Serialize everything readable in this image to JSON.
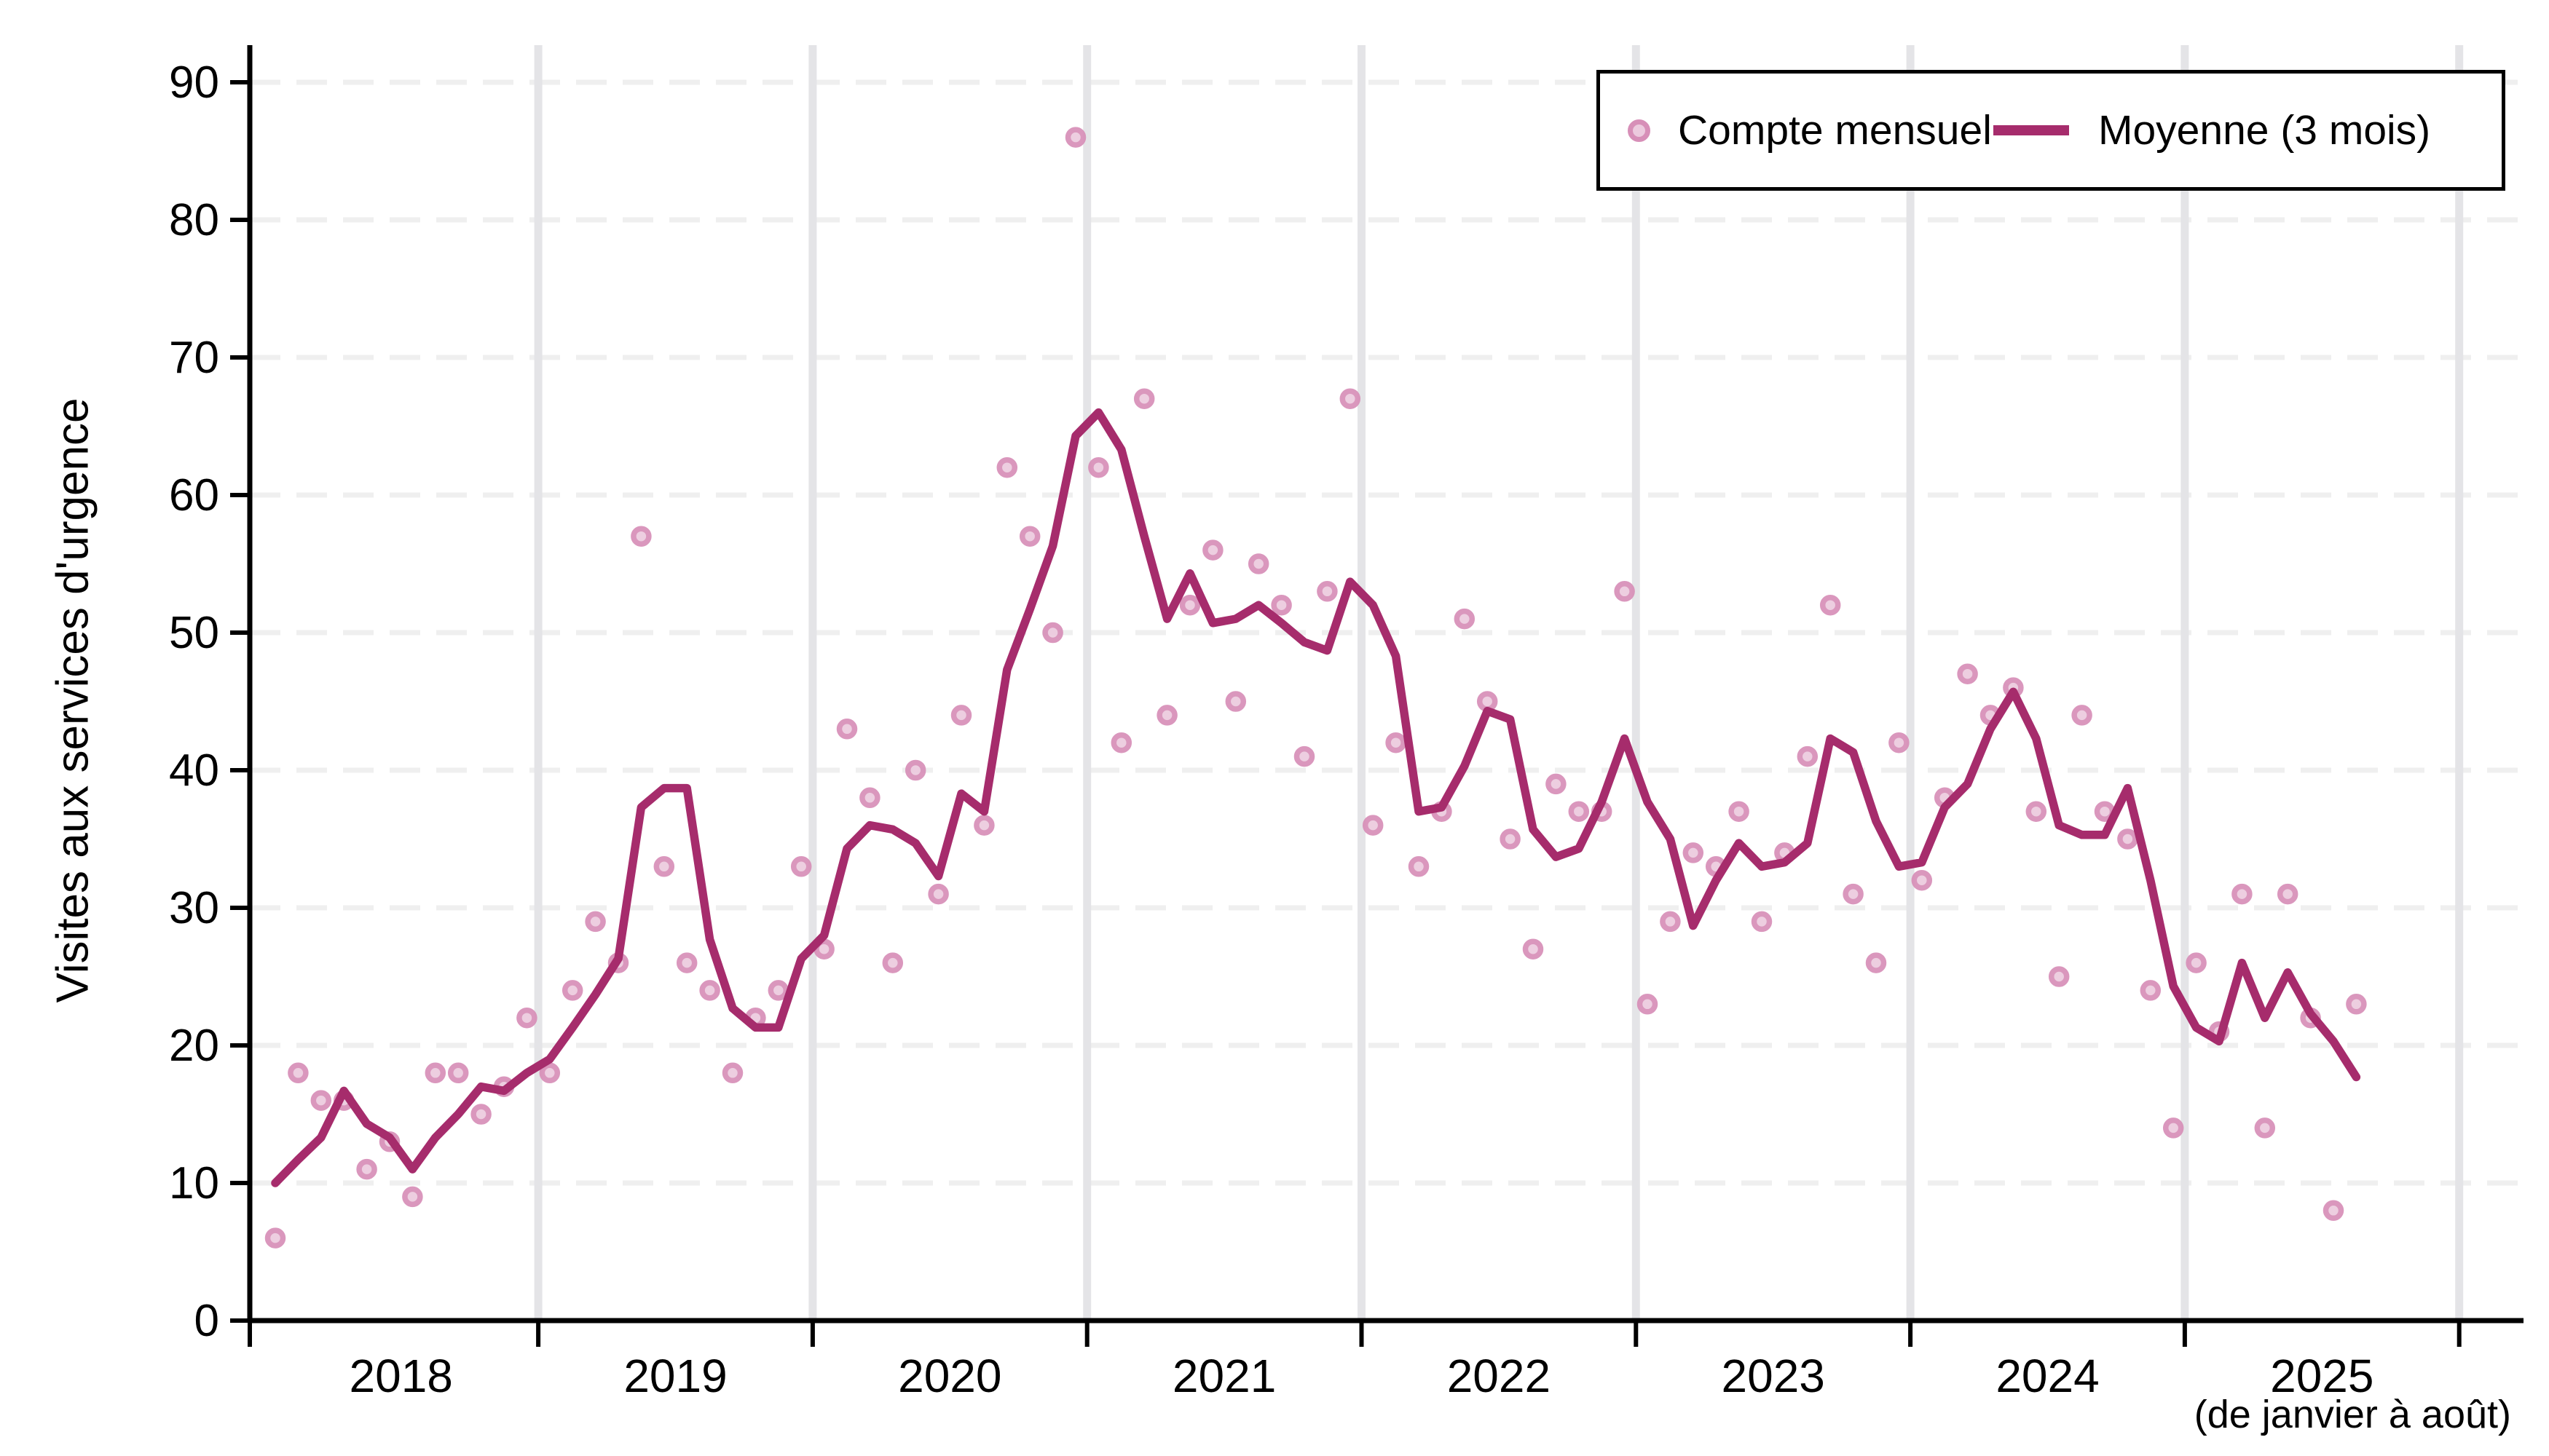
{
  "axes": {
    "y_title": "Visites aux services d'urgence",
    "y_ticks": [
      0,
      10,
      20,
      30,
      40,
      50,
      60,
      70,
      80,
      90
    ],
    "ylim": [
      0,
      90
    ],
    "x_year_labels": [
      "2018",
      "2019",
      "2020",
      "2021",
      "2022",
      "2023",
      "2024",
      "2025"
    ],
    "x_note": "(de janvier à août)",
    "grid": "horizontal dashed, vertical solid at year boundaries"
  },
  "legend": {
    "monthly_label": "Compte mensuel",
    "ma_label": "Moyenne (3 mois)"
  },
  "colors": {
    "ma_line": "#A62C6C",
    "point_ring": "#D78FB8",
    "point_fill": "#ECCADE",
    "h_gridline": "#EFEFEF",
    "v_gridline": "#E4E4E7",
    "axis": "#000000",
    "background": "#FFFFFF"
  },
  "chart_data": {
    "type": "scatter",
    "x_unit": "month",
    "start_month": "2018-01",
    "end_month": "2025-08",
    "n_months": 92,
    "title": "",
    "xlabel": "",
    "ylabel": "Visites aux services d'urgence",
    "ylim": [
      0,
      90
    ],
    "legend_position": "top-right",
    "series": [
      {
        "name": "Compte mensuel",
        "type": "scatter",
        "values": [
          6,
          18,
          16,
          16,
          11,
          13,
          9,
          18,
          18,
          15,
          17,
          22,
          18,
          24,
          29,
          26,
          57,
          33,
          26,
          24,
          18,
          22,
          24,
          33,
          27,
          43,
          38,
          26,
          40,
          31,
          44,
          36,
          62,
          57,
          50,
          86,
          62,
          42,
          67,
          44,
          52,
          56,
          45,
          55,
          52,
          41,
          53,
          67,
          36,
          42,
          33,
          37,
          51,
          45,
          35,
          27,
          39,
          37,
          37,
          53,
          23,
          29,
          34,
          33,
          37,
          29,
          34,
          41,
          52,
          31,
          26,
          42,
          32,
          38,
          47,
          44,
          46,
          37,
          25,
          44,
          37,
          35,
          24,
          14,
          26,
          21,
          31,
          14,
          31,
          22,
          8,
          23
        ]
      },
      {
        "name": "Moyenne (3 mois)",
        "type": "line",
        "values": [
          10.0,
          11.7,
          13.3,
          16.7,
          14.3,
          13.3,
          11.0,
          13.3,
          15.0,
          17.0,
          16.7,
          18.0,
          19.0,
          21.3,
          23.7,
          26.3,
          37.3,
          38.7,
          38.7,
          27.7,
          22.7,
          21.3,
          21.3,
          26.3,
          28.0,
          34.3,
          36.0,
          35.7,
          34.7,
          32.3,
          38.3,
          37.0,
          47.3,
          51.7,
          56.3,
          64.3,
          66.0,
          63.3,
          57.0,
          51.0,
          54.3,
          50.7,
          51.0,
          52.0,
          50.7,
          49.3,
          48.7,
          53.7,
          52.0,
          48.3,
          37.0,
          37.3,
          40.3,
          44.3,
          43.7,
          35.7,
          33.7,
          34.3,
          37.7,
          42.3,
          37.7,
          35.0,
          28.7,
          32.0,
          34.7,
          33.0,
          33.3,
          34.7,
          42.3,
          41.3,
          36.3,
          33.0,
          33.3,
          37.3,
          39.0,
          43.0,
          45.7,
          42.3,
          36.0,
          35.3,
          35.3,
          38.7,
          32.0,
          24.3,
          21.3,
          20.3,
          26.0,
          22.0,
          25.3,
          22.3,
          20.3,
          17.7
        ]
      }
    ]
  }
}
